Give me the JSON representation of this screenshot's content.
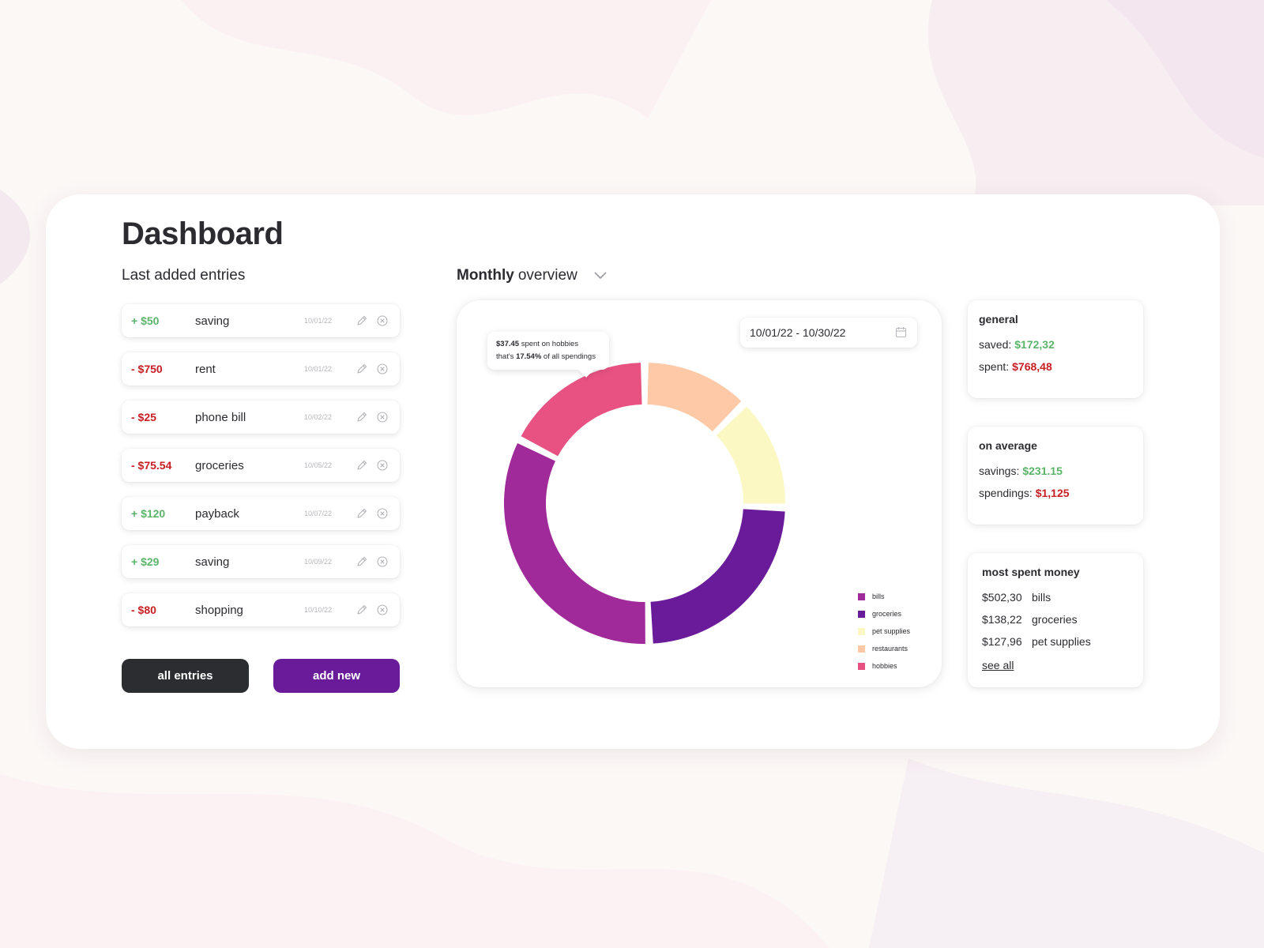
{
  "colors": {
    "accent_purple": "#6a1b9a",
    "dark": "#2b2d30",
    "positive": "#5bb46a",
    "negative": "#c81e23",
    "bills": "#a12a9a",
    "groceries": "#6a1b9a",
    "pet_supplies": "#fcf8c4",
    "restaurants": "#fdc9a6",
    "hobbies": "#e85283"
  },
  "header": {
    "title": "Dashboard"
  },
  "entries": {
    "title": "Last added entries",
    "items": [
      {
        "amount": "+ $50",
        "sign": "pos",
        "label": "saving",
        "date": "10/01/22"
      },
      {
        "amount": "- $750",
        "sign": "neg",
        "label": "rent",
        "date": "10/01/22"
      },
      {
        "amount": "- $25",
        "sign": "neg",
        "label": "phone bill",
        "date": "10/02/22"
      },
      {
        "amount": "- $75.54",
        "sign": "neg",
        "label": "groceries",
        "date": "10/05/22"
      },
      {
        "amount": "+ $120",
        "sign": "pos",
        "label": "payback",
        "date": "10/07/22"
      },
      {
        "amount": "+ $29",
        "sign": "pos",
        "label": "saving",
        "date": "10/09/22"
      },
      {
        "amount": "- $80",
        "sign": "neg",
        "label": "shopping",
        "date": "10/10/22"
      }
    ],
    "all_button": "all entries",
    "add_button": "add new"
  },
  "overview": {
    "title_bold": "Monthly",
    "title_rest": "overview",
    "date_range": "10/01/22 - 10/30/22",
    "tooltip": {
      "amount": "$37.45",
      "text1": " spent on hobbies",
      "text2": "that's ",
      "pct": "17.54%",
      "text3": " of all spendings"
    }
  },
  "chart_data": {
    "type": "pie",
    "title": "Monthly overview",
    "categories": [
      "bills",
      "groceries",
      "pet supplies",
      "restaurants",
      "hobbies"
    ],
    "values": [
      33.0,
      24.0,
      13.0,
      12.5,
      17.54
    ],
    "highlighted": "hobbies"
  },
  "stats": {
    "general": {
      "title": "general",
      "saved_label": "saved:",
      "saved_value": "$172,32",
      "spent_label": "spent:",
      "spent_value": "$768,48"
    },
    "average": {
      "title": "on average",
      "savings_label": "savings:",
      "savings_value": "$231.15",
      "spendings_label": "spendings:",
      "spendings_value": "$1,125"
    },
    "most_spent": {
      "title": "most spent money",
      "items": [
        {
          "amount": "$502,30",
          "label": "bills"
        },
        {
          "amount": "$138,22",
          "label": "groceries"
        },
        {
          "amount": "$127,96",
          "label": "pet supplies"
        }
      ],
      "see_all": "see all"
    }
  }
}
